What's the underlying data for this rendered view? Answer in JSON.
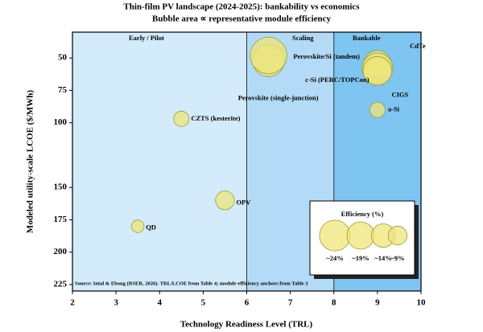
{
  "chart_data": {
    "type": "scatter",
    "title": "Thin-film PV landscape (2024-2025): bankability  vs economics",
    "subtitle": "Bubble area ∝ representative module efficiency",
    "x_label": "Technology Readiness Level (TRL)",
    "y_label": "Modeled utility-scale LCOE ($/MWh)",
    "xlim": [
      2,
      10
    ],
    "xticks": [
      2,
      3,
      4,
      5,
      6,
      7,
      8,
      9,
      10
    ],
    "ylim": [
      30,
      230
    ],
    "y_inverted": true,
    "yticks": [
      50,
      75,
      100,
      150,
      175,
      200,
      225
    ],
    "regions": [
      {
        "label": "Early / Pilot",
        "x": [
          2,
          6
        ],
        "color": "#d4ebfb"
      },
      {
        "label": "Scaling",
        "x": [
          6,
          8
        ],
        "color": "#b3dbf7"
      },
      {
        "label": "Bankable",
        "x": [
          8,
          10
        ],
        "color": "#7fc5f2"
      }
    ],
    "bubble_color": "#eee67a",
    "bubble_edge": "#9a9a3a",
    "points": [
      {
        "label": "QD",
        "x": 3.5,
        "y": 180,
        "size": 4
      },
      {
        "label": "CZTS (kesterite)",
        "x": 4.5,
        "y": 97,
        "size": 6
      },
      {
        "label": "OPV",
        "x": 5.5,
        "y": 160,
        "size": 9
      },
      {
        "label": "Perovskite (single-junction)",
        "x": 6.5,
        "y": 52,
        "size": 26
      },
      {
        "label": "Perovskite/Si (tandem)",
        "x": 6.5,
        "y": 48,
        "size": 34
      },
      {
        "label": "CdTe",
        "x": 9,
        "y": 55,
        "size": 20
      },
      {
        "label": "c-Si (PERC/TOPCon)",
        "x": 9,
        "y": 58,
        "size": 24
      },
      {
        "label": "CIGS",
        "x": 9,
        "y": 60,
        "size": 21
      },
      {
        "label": "a-Si",
        "x": 9,
        "y": 90,
        "size": 6
      }
    ],
    "legend": {
      "title": "Efficiency (%)",
      "position": "lower right",
      "entries": [
        {
          "value": 24,
          "label": "~24%"
        },
        {
          "value": 19,
          "label": "~19%"
        },
        {
          "value": 14,
          "label": "~14%"
        },
        {
          "value": 9,
          "label": "~9%"
        }
      ]
    },
    "source": "Source: Intal & Ebong (RSER, 2026). TRL/LCOE from Table 4; module-efficiency anchors from Table 3"
  }
}
